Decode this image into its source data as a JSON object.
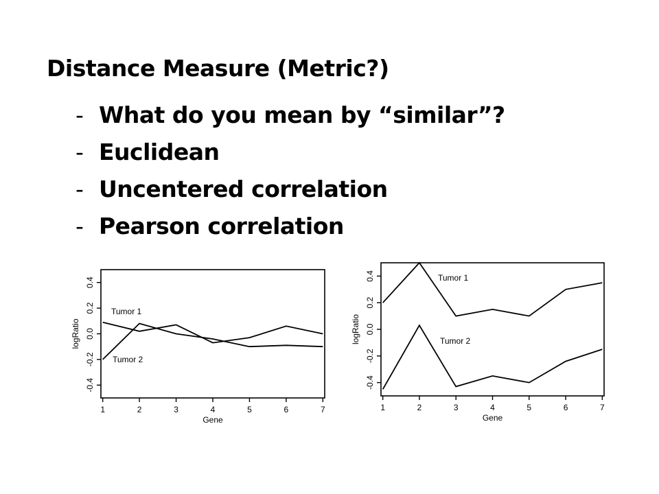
{
  "title": "Distance Measure (Metric?)",
  "bullets": [
    {
      "dash": "-",
      "text": "What do you mean by “similar”?"
    },
    {
      "dash": "-",
      "text": "Euclidean"
    },
    {
      "dash": "-",
      "text": "Uncentered correlation"
    },
    {
      "dash": "-",
      "text": "Pearson correlation"
    }
  ],
  "chart_data": [
    {
      "type": "line",
      "xlabel": "Gene",
      "ylabel": "logRatio",
      "x": [
        1,
        2,
        3,
        4,
        5,
        6,
        7
      ],
      "xlim": [
        0.95,
        7.05
      ],
      "ylim": [
        -0.5,
        0.5
      ],
      "y_ticks": [
        -0.4,
        -0.2,
        0.0,
        0.2,
        0.4
      ],
      "y_tick_labels": [
        "-0.4",
        "-0.2",
        "0.0",
        "0.2",
        "0.4"
      ],
      "x_tick_labels": [
        "1",
        "2",
        "3",
        "4",
        "5",
        "6",
        "7"
      ],
      "grid": false,
      "series": [
        {
          "name": "Tumor 1",
          "values": [
            0.09,
            0.02,
            0.07,
            -0.07,
            -0.03,
            0.06,
            0.0
          ]
        },
        {
          "name": "Tumor 2",
          "values": [
            -0.2,
            0.08,
            0.0,
            -0.04,
            -0.1,
            -0.09,
            -0.1
          ]
        }
      ]
    },
    {
      "type": "line",
      "xlabel": "Gene",
      "ylabel": "logRatio",
      "x": [
        1,
        2,
        3,
        4,
        5,
        6,
        7
      ],
      "xlim": [
        0.95,
        7.05
      ],
      "ylim": [
        -0.5,
        0.5
      ],
      "y_ticks": [
        -0.4,
        -0.2,
        0.0,
        0.2,
        0.4
      ],
      "y_tick_labels": [
        "-0.4",
        "-0.2",
        "0.0",
        "0.2",
        "0.4"
      ],
      "x_tick_labels": [
        "1",
        "2",
        "3",
        "4",
        "5",
        "6",
        "7"
      ],
      "grid": false,
      "series": [
        {
          "name": "Tumor 1",
          "values": [
            0.2,
            0.5,
            0.1,
            0.15,
            0.1,
            0.3,
            0.35
          ]
        },
        {
          "name": "Tumor 2",
          "values": [
            -0.45,
            0.03,
            -0.43,
            -0.35,
            -0.4,
            -0.24,
            -0.15
          ]
        }
      ]
    }
  ]
}
